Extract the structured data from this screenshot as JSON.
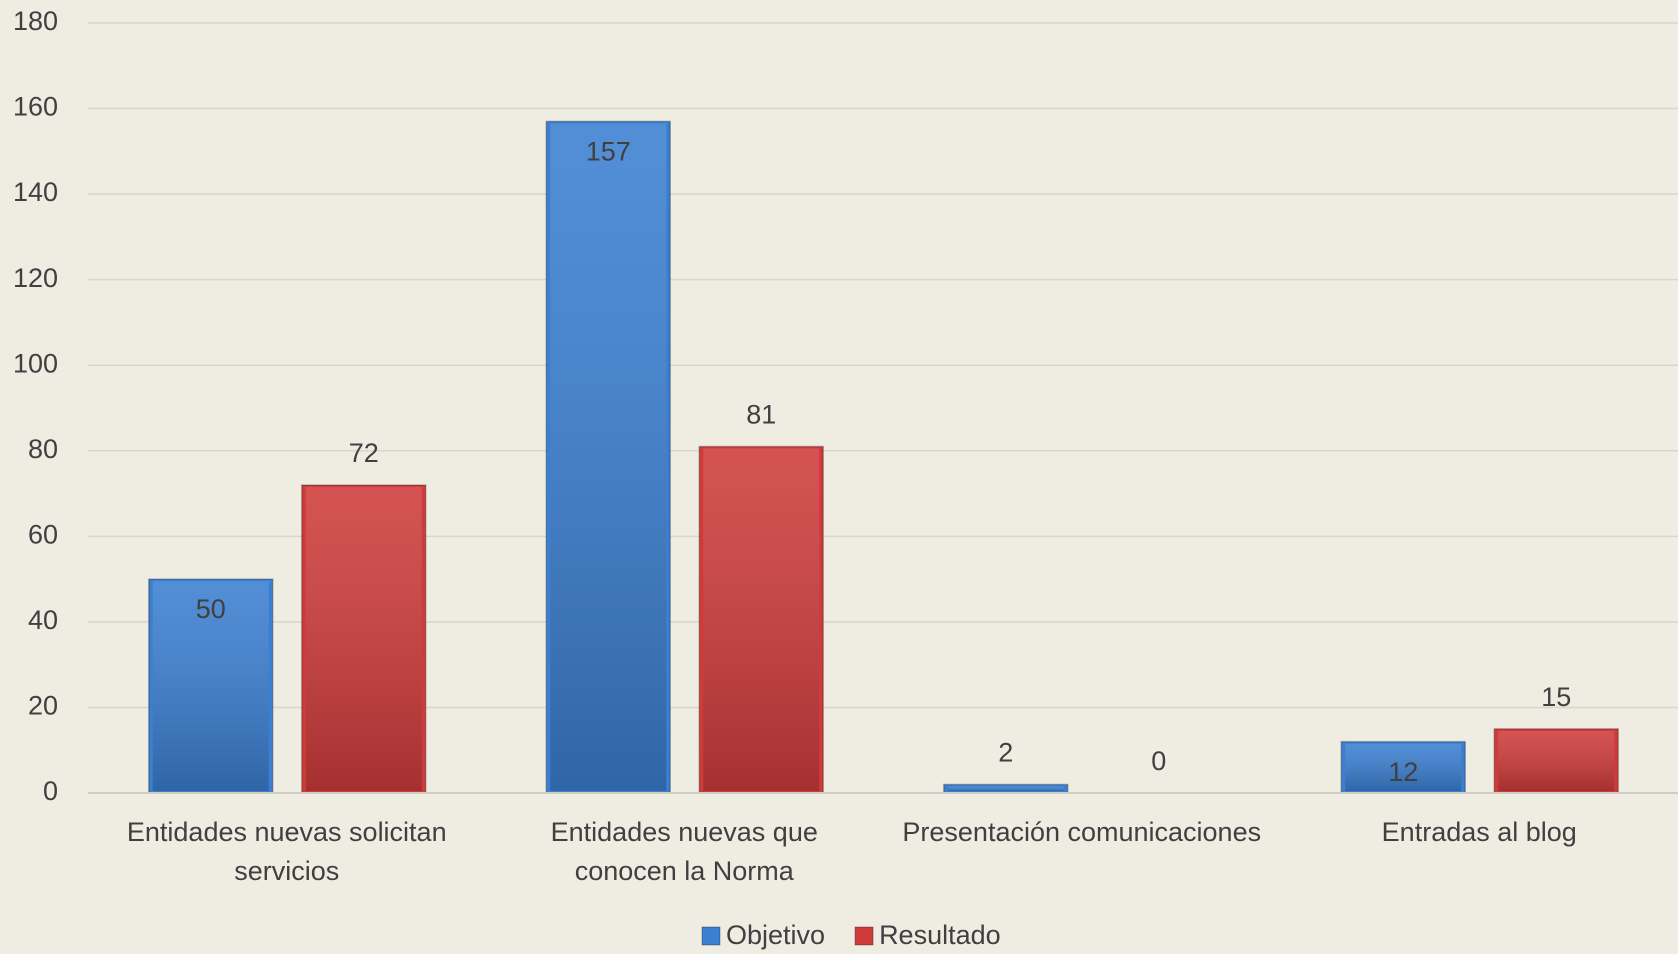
{
  "chart_data": {
    "type": "bar",
    "categories": [
      "Entidades nuevas solicitan servicios",
      "Entidades nuevas que conocen la Norma",
      "Presentación comunicaciones",
      "Entradas al blog"
    ],
    "series": [
      {
        "name": "Objetivo",
        "color": "#3b7fd1",
        "values": [
          50,
          157,
          2,
          12
        ]
      },
      {
        "name": "Resultado",
        "color": "#cf3b3b",
        "values": [
          72,
          81,
          0,
          15
        ]
      }
    ],
    "ylim": [
      0,
      180
    ],
    "yticks": [
      0,
      20,
      40,
      60,
      80,
      100,
      120,
      140,
      160,
      180
    ],
    "grid": true,
    "legend": "bottom"
  }
}
